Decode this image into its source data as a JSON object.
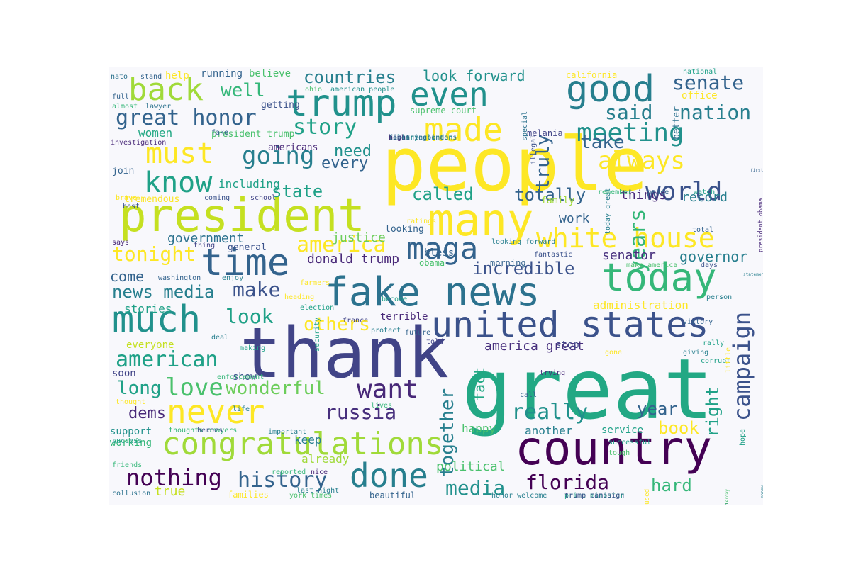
{
  "palette": {
    "yellow": "#fde725",
    "lime": "#c5e021",
    "light_green": "#a0da39",
    "green": "#6ccd5a",
    "mint": "#4ac16d",
    "teal_green": "#35b779",
    "teal": "#1fa187",
    "sea": "#22a884",
    "cyan": "#21918c",
    "steel": "#277f8e",
    "blue": "#2c728e",
    "slate": "#33638d",
    "indigo": "#3b528b",
    "violet": "#414487",
    "deep_violet": "#472f7d",
    "purple": "#482878",
    "dark_purple": "#440154",
    "plum": "#46085c"
  },
  "words": [
    {
      "text": "great"
    },
    {
      "text": "people"
    },
    {
      "text": "thank"
    },
    {
      "text": "country"
    },
    {
      "text": "fake news"
    },
    {
      "text": "president"
    },
    {
      "text": "united states"
    },
    {
      "text": "today"
    },
    {
      "text": "congratulations"
    },
    {
      "text": "time"
    },
    {
      "text": "much"
    },
    {
      "text": "many"
    },
    {
      "text": "trump"
    },
    {
      "text": "good"
    },
    {
      "text": "even"
    },
    {
      "text": "never"
    },
    {
      "text": "done"
    },
    {
      "text": "white house"
    },
    {
      "text": "back"
    },
    {
      "text": "made"
    },
    {
      "text": "maga"
    },
    {
      "text": "must"
    },
    {
      "text": "know"
    },
    {
      "text": "meeting"
    },
    {
      "text": "world"
    },
    {
      "text": "want"
    },
    {
      "text": "love"
    },
    {
      "text": "nothing"
    },
    {
      "text": "great honor"
    },
    {
      "text": "history"
    },
    {
      "text": "florida"
    },
    {
      "text": "american"
    },
    {
      "text": "campaign"
    },
    {
      "text": "really"
    },
    {
      "text": "russia"
    },
    {
      "text": "always"
    },
    {
      "text": "going"
    },
    {
      "text": "years"
    },
    {
      "text": "america"
    },
    {
      "text": "story"
    },
    {
      "text": "wonderful"
    },
    {
      "text": "make"
    },
    {
      "text": "said"
    },
    {
      "text": "countries"
    },
    {
      "text": "nation"
    },
    {
      "text": "senate"
    },
    {
      "text": "well"
    },
    {
      "text": "tonight"
    },
    {
      "text": "look"
    },
    {
      "text": "long"
    },
    {
      "text": "incredible"
    },
    {
      "text": "totally"
    },
    {
      "text": "news media"
    },
    {
      "text": "media"
    },
    {
      "text": "truly"
    },
    {
      "text": "together"
    },
    {
      "text": "others"
    },
    {
      "text": "called"
    },
    {
      "text": "state"
    },
    {
      "text": "year"
    },
    {
      "text": "right"
    },
    {
      "text": "book"
    },
    {
      "text": "take"
    },
    {
      "text": "hard"
    },
    {
      "text": "dems"
    },
    {
      "text": "look forward"
    },
    {
      "text": "need"
    },
    {
      "text": "every"
    },
    {
      "text": "america great"
    },
    {
      "text": "political"
    },
    {
      "text": "fact"
    },
    {
      "text": "donald trump"
    },
    {
      "text": "senator"
    },
    {
      "text": "governor"
    },
    {
      "text": "work"
    },
    {
      "text": "government"
    },
    {
      "text": "administration"
    },
    {
      "text": "things"
    },
    {
      "text": "record"
    },
    {
      "text": "justice"
    },
    {
      "text": "including"
    },
    {
      "text": "women"
    },
    {
      "text": "come"
    },
    {
      "text": "stories"
    },
    {
      "text": "happy"
    },
    {
      "text": "another"
    },
    {
      "text": "service"
    },
    {
      "text": "true"
    },
    {
      "text": "already"
    },
    {
      "text": "keep"
    },
    {
      "text": "terrible"
    },
    {
      "text": "stop"
    },
    {
      "text": "everyone"
    },
    {
      "text": "soon"
    },
    {
      "text": "show"
    },
    {
      "text": "support"
    },
    {
      "text": "working"
    },
    {
      "text": "join"
    },
    {
      "text": "first"
    },
    {
      "text": "running"
    },
    {
      "text": "believe"
    },
    {
      "text": "help"
    },
    {
      "text": "getting"
    },
    {
      "text": "president trump"
    },
    {
      "text": "americans"
    },
    {
      "text": "california"
    },
    {
      "text": "office"
    },
    {
      "text": "better"
    },
    {
      "text": "melania"
    },
    {
      "text": "supreme court"
    },
    {
      "text": "tremendous"
    },
    {
      "text": "looking"
    },
    {
      "text": "family"
    },
    {
      "text": "general"
    },
    {
      "text": "morning"
    },
    {
      "text": "obama"
    },
    {
      "text": "bless"
    },
    {
      "text": "proud"
    },
    {
      "text": "money"
    },
    {
      "text": "yesterday"
    },
    {
      "text": "families"
    },
    {
      "text": "beautiful"
    },
    {
      "text": "investigation"
    },
    {
      "text": "fake"
    },
    {
      "text": "hillary clinton"
    },
    {
      "text": "something"
    },
    {
      "text": "first responders"
    },
    {
      "text": "high"
    },
    {
      "text": "times"
    },
    {
      "text": "nato"
    },
    {
      "text": "stand"
    },
    {
      "text": "full"
    },
    {
      "text": "almost"
    },
    {
      "text": "lawyer"
    },
    {
      "text": "ohio"
    },
    {
      "text": "american people"
    },
    {
      "text": "special"
    },
    {
      "text": "national"
    },
    {
      "text": "brave"
    },
    {
      "text": "best"
    },
    {
      "text": "coming"
    },
    {
      "text": "school"
    },
    {
      "text": "says"
    },
    {
      "text": "thing"
    },
    {
      "text": "washington"
    },
    {
      "text": "enjoy"
    },
    {
      "text": "deal"
    },
    {
      "text": "making"
    },
    {
      "text": "enforcement"
    },
    {
      "text": "life"
    },
    {
      "text": "thought"
    },
    {
      "text": "thoughts prayers"
    },
    {
      "text": "heroes"
    },
    {
      "text": "success"
    },
    {
      "text": "friends"
    },
    {
      "text": "collusion"
    },
    {
      "text": "important"
    },
    {
      "text": "last night"
    },
    {
      "text": "nice"
    },
    {
      "text": "reported"
    },
    {
      "text": "york times"
    },
    {
      "text": "prime minister"
    },
    {
      "text": "honor welcome"
    },
    {
      "text": "trump campaign"
    },
    {
      "text": "remember"
    },
    {
      "text": "peace"
    },
    {
      "text": "watch"
    },
    {
      "text": "total"
    },
    {
      "text": "looking forward"
    },
    {
      "text": "fantastic"
    },
    {
      "text": "make america"
    },
    {
      "text": "days"
    },
    {
      "text": "statement"
    },
    {
      "text": "person"
    },
    {
      "text": "victory"
    },
    {
      "text": "rally"
    },
    {
      "text": "giving"
    },
    {
      "text": "gone"
    },
    {
      "text": "corrupt"
    },
    {
      "text": "trying"
    },
    {
      "text": "call"
    },
    {
      "text": "successful"
    },
    {
      "text": "tough"
    },
    {
      "text": "lives"
    },
    {
      "text": "future"
    },
    {
      "text": "told"
    },
    {
      "text": "protect"
    },
    {
      "text": "france"
    },
    {
      "text": "farmers"
    },
    {
      "text": "heading"
    },
    {
      "text": "become"
    },
    {
      "text": "election"
    },
    {
      "text": "ratings"
    },
    {
      "text": "security"
    },
    {
      "text": "illegal"
    },
    {
      "text": "today great"
    },
    {
      "text": "president obama"
    },
    {
      "text": "little"
    },
    {
      "text": "hope"
    },
    {
      "text": "used"
    }
  ]
}
